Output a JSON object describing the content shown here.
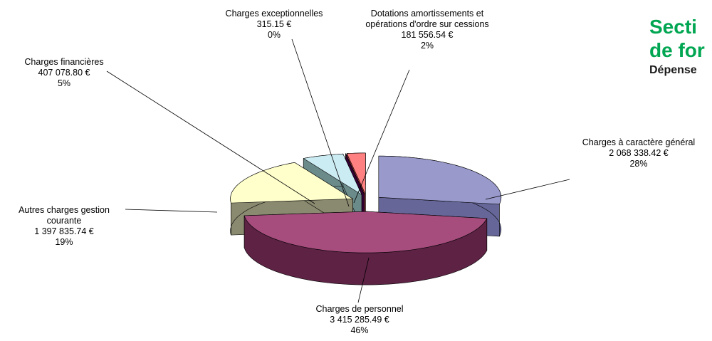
{
  "heading": {
    "line1": "Secti",
    "line2": "de for",
    "line3": "Dépense"
  },
  "chart_data": {
    "type": "pie",
    "categories": [
      "Charges à caractère général",
      "Charges de personnel",
      "Autres charges gestion courante",
      "Charges financières",
      "Charges exceptionnelles",
      "Dotations amortissements et opérations d'ordre sur cessions"
    ],
    "values": [
      2068338.42,
      3415285.49,
      1397835.74,
      407078.8,
      315.15,
      181556.54
    ],
    "value_labels": [
      "2 068 338.42 €",
      "3 415 285.49 €",
      "1 397 835.74 €",
      "407 078.80 €",
      "315.15 €",
      "181 556.54 €"
    ],
    "percentages": [
      28,
      46,
      19,
      5,
      0,
      2
    ],
    "percentage_labels": [
      "28%",
      "46%",
      "19%",
      "5%",
      "0%",
      "2%"
    ],
    "colors": [
      "#9999cc",
      "#a64d7e",
      "#ffffcc",
      "#ccecf4",
      "#660066",
      "#ff8080"
    ],
    "side_colors": [
      "#666699",
      "#5e2244",
      "#8a8a70",
      "#6b8a8a",
      "#330033",
      "#993333"
    ]
  }
}
